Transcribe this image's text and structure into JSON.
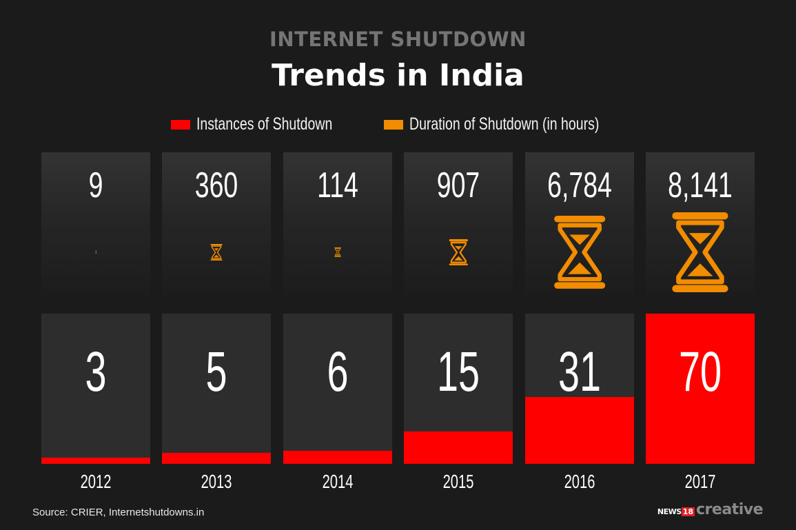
{
  "header": {
    "supertitle": "INTERNET SHUTDOWN",
    "title": "Trends in India"
  },
  "legend": [
    {
      "label": "Instances of Shutdown",
      "color": "#ff0000"
    },
    {
      "label": "Duration of Shutdown (in hours)",
      "color": "#f28c00"
    }
  ],
  "colors": {
    "instances": "#ff0000",
    "duration": "#f28c00",
    "panel": "#2d2d2d",
    "background": "#1b1b1b"
  },
  "icons": {
    "duration": "hourglass-icon"
  },
  "chart_data": {
    "type": "bar",
    "categories": [
      "2012",
      "2013",
      "2014",
      "2015",
      "2016",
      "2017"
    ],
    "series": [
      {
        "name": "Instances of Shutdown",
        "values": [
          3,
          5,
          6,
          15,
          31,
          70
        ],
        "labels": [
          "3",
          "5",
          "6",
          "15",
          "31",
          "70"
        ]
      },
      {
        "name": "Duration of Shutdown (in hours)",
        "values": [
          9,
          360,
          114,
          907,
          6784,
          8141
        ],
        "labels": [
          "9",
          "360",
          "114",
          "907",
          "6,784",
          "8,141"
        ]
      }
    ],
    "ylim_instances": [
      0,
      70
    ],
    "ylim_duration": [
      0,
      8141
    ],
    "grid": false,
    "legend_position": "top-center"
  },
  "footer": {
    "source": "Source: CRIER, Internetshutdowns.in",
    "brand_news": "NEWS",
    "brand_18": "18",
    "brand_creative": "creative"
  }
}
